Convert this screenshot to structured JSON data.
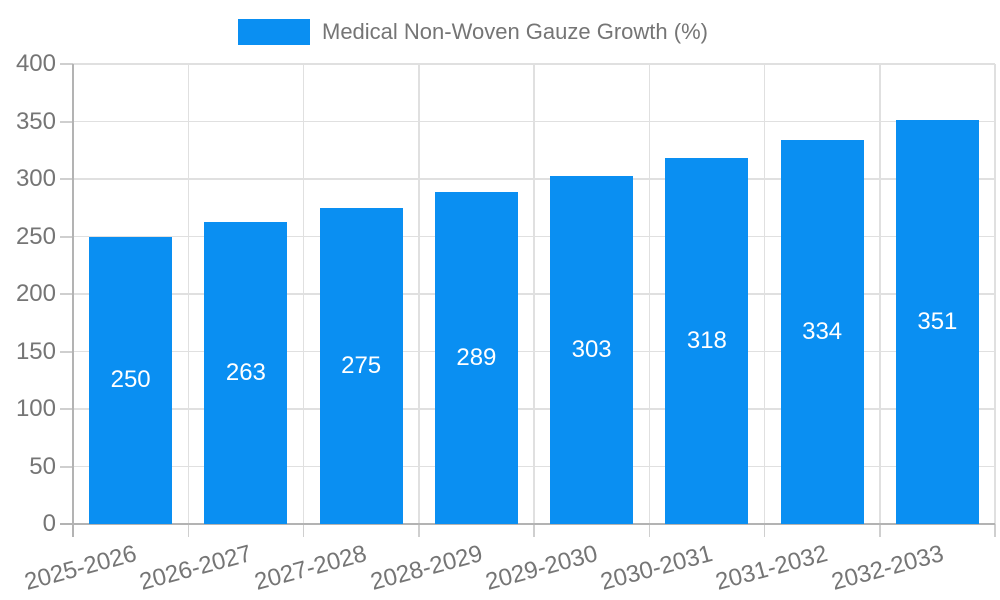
{
  "legend": {
    "label": "Medical Non-Woven Gauze Growth (%)"
  },
  "chart_data": {
    "type": "bar",
    "title": "",
    "categories": [
      "2025-2026",
      "2026-2027",
      "2027-2028",
      "2028-2029",
      "2029-2030",
      "2030-2031",
      "2031-2032",
      "2032-2033"
    ],
    "series": [
      {
        "name": "Medical Non-Woven Gauze Growth (%)",
        "values": [
          250,
          263,
          275,
          289,
          303,
          318,
          334,
          351
        ]
      }
    ],
    "xlabel": "",
    "ylabel": "",
    "ylim": [
      0,
      400
    ],
    "yticks": [
      0,
      50,
      100,
      150,
      200,
      250,
      300,
      350,
      400
    ],
    "grid": true,
    "legend_position": "top",
    "value_labels": "inside-center"
  },
  "colors": {
    "bar": "#0a8ff2",
    "axis_text": "#757575",
    "legend_text": "#757575",
    "gridline": "#e0e0e0",
    "axis_line": "#b3b3b3",
    "tick": "#cfcfcf",
    "value_label": "#ffffff",
    "background": "#ffffff"
  }
}
